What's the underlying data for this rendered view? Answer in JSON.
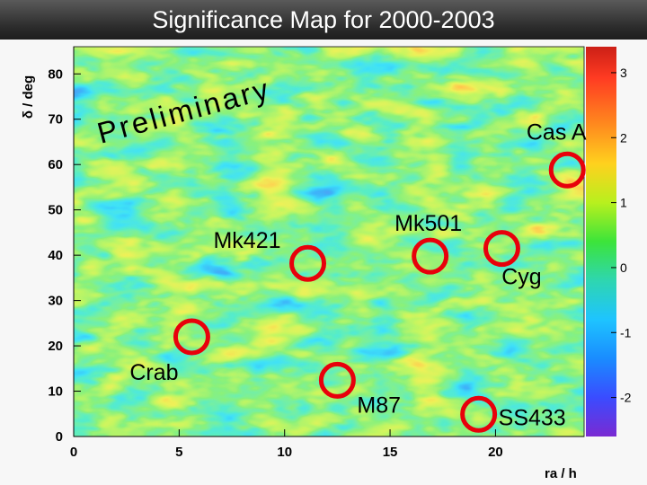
{
  "header": {
    "title": "Significance Map for 2000-2003"
  },
  "chart_data": {
    "type": "heatmap",
    "title": "Significance Map for 2000-2003",
    "xlabel": "ra / h",
    "ylabel": "δ / deg",
    "xlim": [
      0,
      24.2
    ],
    "ylim": [
      0,
      86
    ],
    "x_ticks": [
      0,
      5,
      10,
      15,
      20
    ],
    "y_ticks": [
      0,
      10,
      20,
      30,
      40,
      50,
      60,
      70,
      80
    ],
    "colorbar": {
      "range": [
        -2.6,
        3.4
      ],
      "ticks": [
        3,
        2,
        1,
        0,
        -1,
        -2
      ],
      "colors": [
        "#d22a1a",
        "#ff3b22",
        "#ff8a1e",
        "#ffd11e",
        "#b8f01e",
        "#3ce43a",
        "#2ed6b0",
        "#1ec4ff",
        "#1a8cff",
        "#3a4cff",
        "#6a28d4",
        "#8a2cd0"
      ]
    },
    "annotation": "Preliminary",
    "sources": [
      {
        "name": "Cas A",
        "ra": 23.4,
        "dec": 58.8
      },
      {
        "name": "Mk421",
        "ra": 11.1,
        "dec": 38.2
      },
      {
        "name": "Mk501",
        "ra": 16.9,
        "dec": 39.8
      },
      {
        "name": "Cyg",
        "ra": 20.3,
        "dec": 41.5
      },
      {
        "name": "Crab",
        "ra": 5.6,
        "dec": 22.0
      },
      {
        "name": "M87",
        "ra": 12.5,
        "dec": 12.4
      },
      {
        "name": "SS433",
        "ra": 19.2,
        "dec": 4.9
      }
    ]
  }
}
